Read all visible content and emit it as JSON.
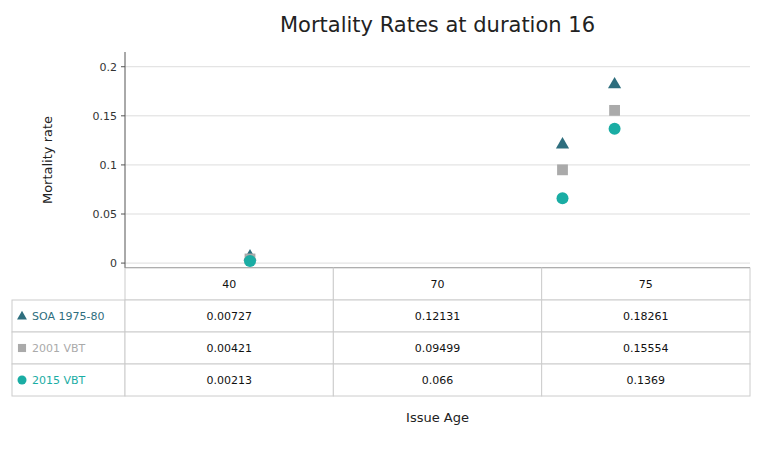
{
  "chart_data": {
    "type": "scatter",
    "title": "Mortality Rates at duration 16",
    "xlabel": "Issue Age",
    "ylabel": "Mortality rate",
    "x": [
      40,
      70,
      75
    ],
    "xlim": [
      28,
      88
    ],
    "tick_labels": "y",
    "series": [
      {
        "name": "SOA 1975-80",
        "color": "#2E6E7E",
        "marker": "triangle",
        "values": [
          0.00727,
          0.12131,
          0.18261
        ]
      },
      {
        "name": "2001 VBT",
        "color": "#AAAAAA",
        "marker": "square",
        "values": [
          0.00421,
          0.09499,
          0.15554
        ]
      },
      {
        "name": "2015 VBT",
        "color": "#1AADA4",
        "marker": "circle",
        "values": [
          0.00213,
          0.066,
          0.1369
        ]
      }
    ],
    "ylim": [
      -0.005,
      0.215
    ],
    "yticks": [
      0,
      0.05,
      0.1,
      0.15,
      0.2
    ],
    "grid": true
  }
}
